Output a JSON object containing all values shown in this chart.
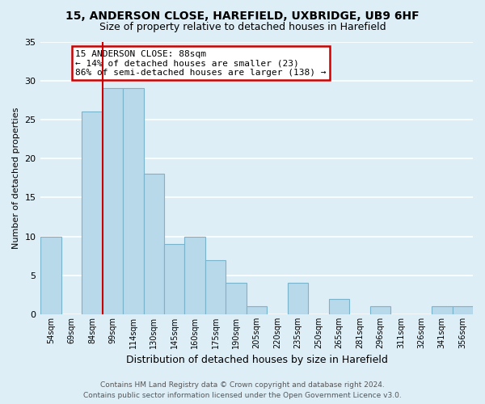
{
  "title1": "15, ANDERSON CLOSE, HAREFIELD, UXBRIDGE, UB9 6HF",
  "title2": "Size of property relative to detached houses in Harefield",
  "xlabel": "Distribution of detached houses by size in Harefield",
  "ylabel": "Number of detached properties",
  "categories": [
    "54sqm",
    "69sqm",
    "84sqm",
    "99sqm",
    "114sqm",
    "130sqm",
    "145sqm",
    "160sqm",
    "175sqm",
    "190sqm",
    "205sqm",
    "220sqm",
    "235sqm",
    "250sqm",
    "265sqm",
    "281sqm",
    "296sqm",
    "311sqm",
    "326sqm",
    "341sqm",
    "356sqm"
  ],
  "values": [
    10,
    0,
    26,
    29,
    29,
    18,
    9,
    10,
    7,
    4,
    1,
    0,
    4,
    0,
    2,
    0,
    1,
    0,
    0,
    1,
    1
  ],
  "bar_color": "#b8d9ea",
  "bar_edge_color": "#7ab4cc",
  "background_color": "#ddeef7",
  "grid_color": "#ffffff",
  "ylim": [
    0,
    35
  ],
  "yticks": [
    0,
    5,
    10,
    15,
    20,
    25,
    30,
    35
  ],
  "property_line_index": 2,
  "annotation_title": "15 ANDERSON CLOSE: 88sqm",
  "annotation_line1": "← 14% of detached houses are smaller (23)",
  "annotation_line2": "86% of semi-detached houses are larger (138) →",
  "annotation_box_color": "#ffffff",
  "annotation_box_edge": "#cc0000",
  "property_line_color": "#cc0000",
  "footer1": "Contains HM Land Registry data © Crown copyright and database right 2024.",
  "footer2": "Contains public sector information licensed under the Open Government Licence v3.0."
}
